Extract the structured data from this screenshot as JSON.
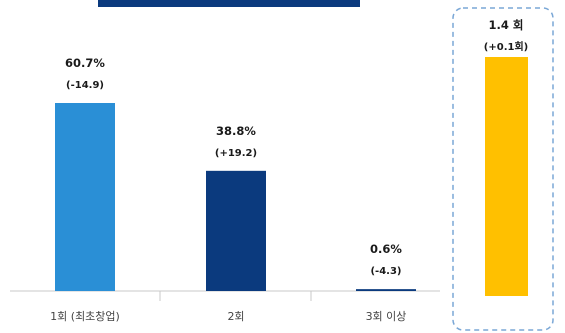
{
  "chart_data": {
    "type": "bar",
    "categories": [
      "1회 (최초창업)",
      "2회",
      "3회 이상"
    ],
    "values": [
      60.7,
      38.8,
      0.6
    ],
    "value_labels": [
      "60.7%",
      "38.8%",
      "0.6%"
    ],
    "change_labels": [
      "(-14.9)",
      "(+19.2)",
      "(-4.3)"
    ],
    "ylim": [
      0,
      70
    ],
    "grid": false,
    "colors": {
      "bars": [
        "#2a8fd6",
        "#0b3a7e",
        "#0b3a7e"
      ],
      "header_band": "#0b3a7e",
      "axis": "#c8c8c8",
      "highlight_bar": "#ffc000",
      "highlight_border": "#7aa7d6"
    },
    "highlight": {
      "value": 1.4,
      "value_label": "1.4 회",
      "change_label": "(+0.1회)"
    }
  }
}
